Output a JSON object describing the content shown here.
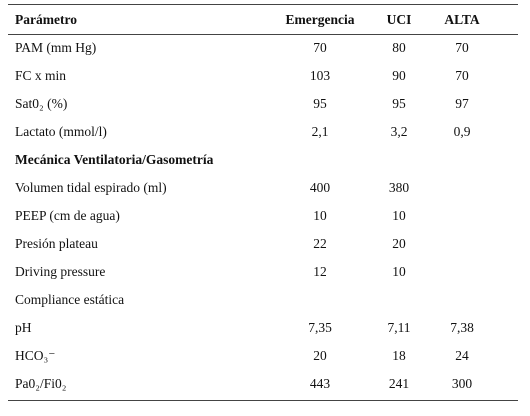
{
  "table": {
    "header": [
      "Parámetro",
      "Emergencia",
      "UCI",
      "ALTA"
    ],
    "rows": [
      {
        "cells": [
          "PAM (mm Hg)",
          "70",
          "80",
          "70"
        ]
      },
      {
        "cells": [
          "FC x min",
          "103",
          "90",
          "70"
        ]
      },
      {
        "cells": [
          "Sat0₂ (%)",
          "95",
          "95",
          "97"
        ]
      },
      {
        "cells": [
          "Lactato (mmol/l)",
          "2,1",
          "3,2",
          "0,9"
        ]
      },
      {
        "heading": "Mecánica Ventilatoria/Gasometría"
      },
      {
        "cells": [
          "Volumen tidal espirado (ml)",
          "400",
          "380"
        ]
      },
      {
        "cells": [
          "PEEP (cm de agua)",
          "10",
          "10"
        ]
      },
      {
        "cells": [
          "Presión plateau",
          "22",
          "20"
        ]
      },
      {
        "cells": [
          "Driving pressure",
          "12",
          "10"
        ]
      },
      {
        "cells": [
          "Compliance estática"
        ]
      },
      {
        "cells": [
          "pH",
          "7,35",
          "7,11",
          "7,38"
        ]
      },
      {
        "cells": [
          "HCO₃⁻",
          "20",
          "18",
          "24"
        ]
      },
      {
        "cells": [
          "Pa0₂/Fi0₂",
          "443",
          "241",
          "300"
        ]
      }
    ]
  }
}
